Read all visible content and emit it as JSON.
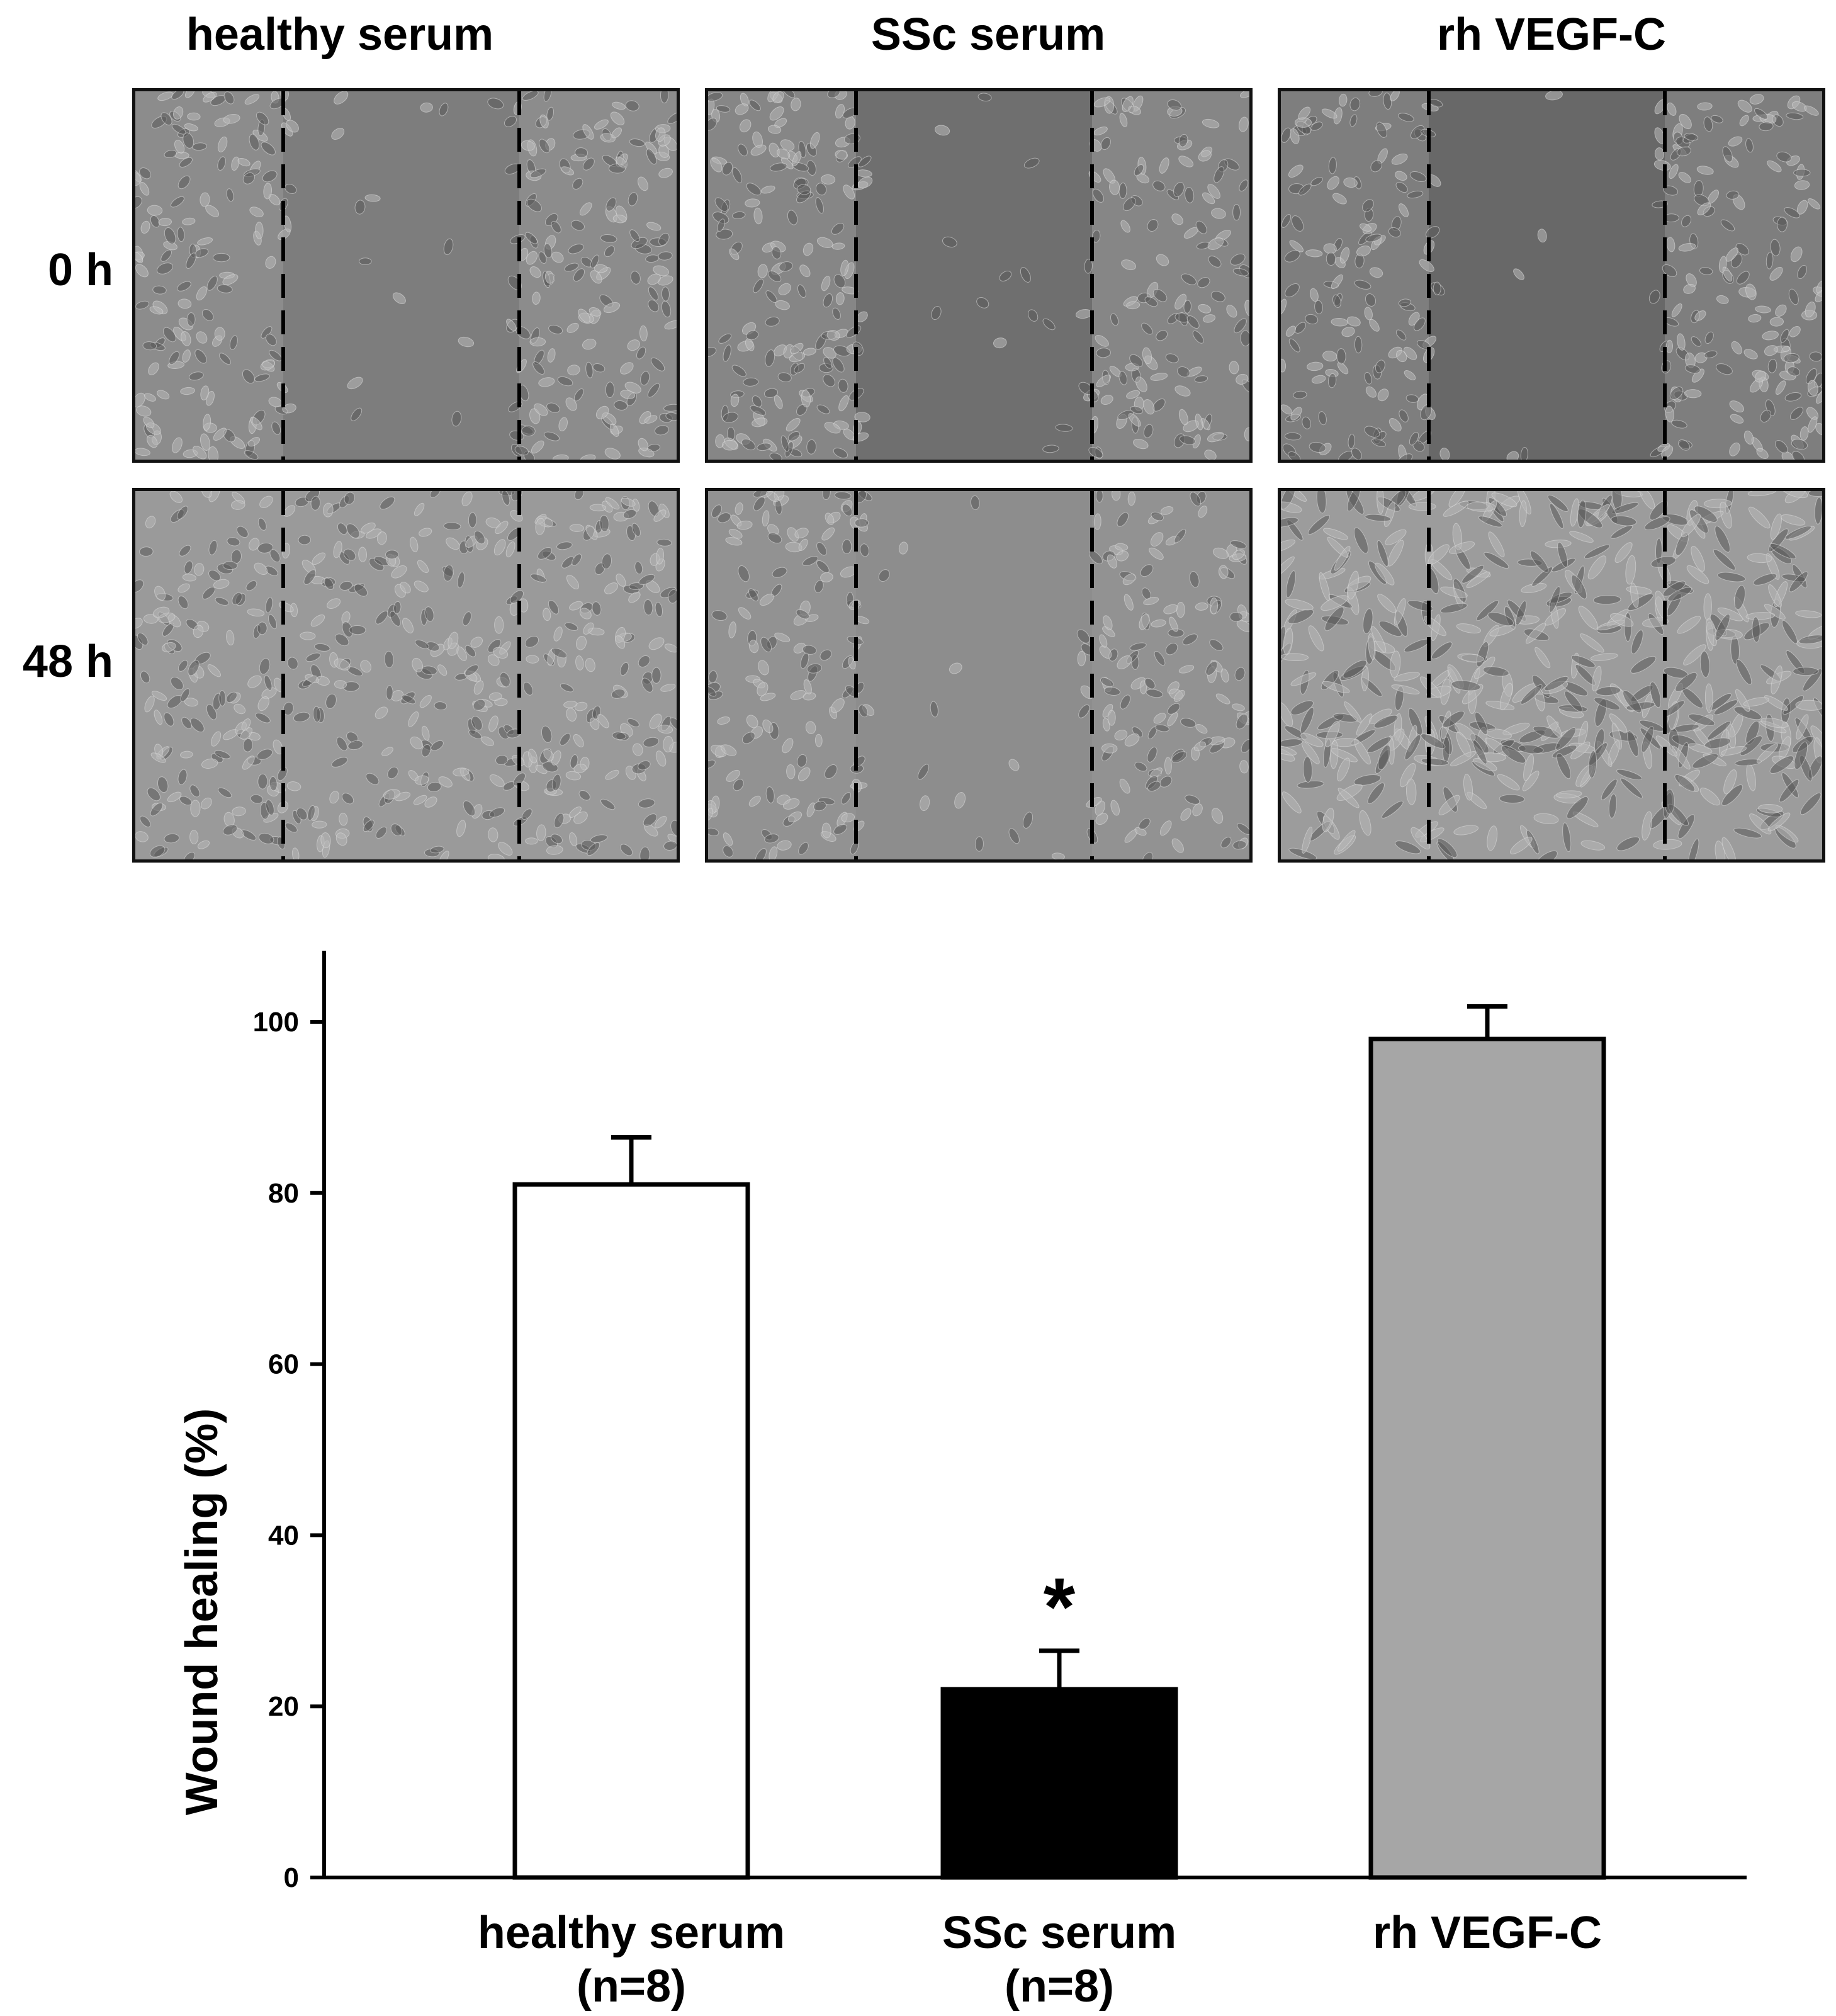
{
  "panel_columns": [
    {
      "title": "healthy serum"
    },
    {
      "title": "SSc serum"
    },
    {
      "title": "rh VEGF-C"
    }
  ],
  "panel_rows": [
    {
      "label": "0 h"
    },
    {
      "label": "48 h"
    }
  ],
  "panels": [
    {
      "row": 0,
      "col": 0,
      "tone": "#8c8c8c",
      "wound_tone": "#7d7d7d",
      "wound_open": true
    },
    {
      "row": 0,
      "col": 1,
      "tone": "#868686",
      "wound_tone": "#6f6f6f",
      "wound_open": true
    },
    {
      "row": 0,
      "col": 2,
      "tone": "#7e7e7e",
      "wound_tone": "#686868",
      "wound_open": true
    },
    {
      "row": 1,
      "col": 0,
      "tone": "#9a9a9a",
      "wound_tone": "#8a8a8a",
      "wound_open": false
    },
    {
      "row": 1,
      "col": 1,
      "tone": "#929292",
      "wound_tone": "#8d8d8d",
      "wound_open": true
    },
    {
      "row": 1,
      "col": 2,
      "tone": "#9c9c9c",
      "wound_tone": "#9c9c9c",
      "wound_open": false
    }
  ],
  "chart_data": {
    "type": "bar",
    "categories": [
      "healthy serum",
      "SSc serum",
      "rh VEGF-C"
    ],
    "category_sublabels": [
      "(n=8)",
      "(n=8)",
      ""
    ],
    "values": [
      81,
      22,
      98
    ],
    "errors": [
      5.5,
      4.5,
      3.8
    ],
    "bar_colors": [
      "#ffffff",
      "#000000",
      "#a6a6a6"
    ],
    "annotations": [
      {
        "category": "SSc serum",
        "text": "*"
      }
    ],
    "ylabel": "Wound healing (%)",
    "xlabel": "",
    "ylim": [
      0,
      108
    ],
    "yticks": [
      0,
      20,
      40,
      60,
      80,
      100
    ],
    "grid": false
  }
}
